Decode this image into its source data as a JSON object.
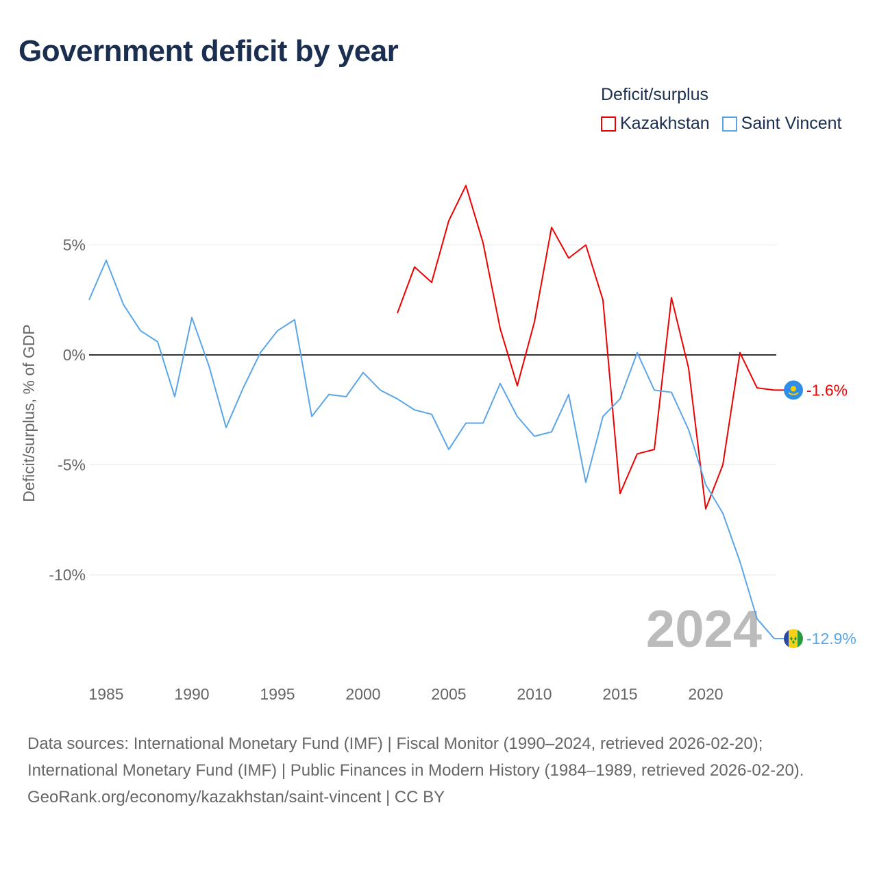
{
  "title": "Government deficit by year",
  "legend": {
    "title": "Deficit/surplus",
    "items": [
      {
        "label": "Kazakhstan",
        "color": "#ee0000"
      },
      {
        "label": "Saint Vincent",
        "color": "#5aa5e8"
      }
    ]
  },
  "chart_data": {
    "type": "line",
    "title": "Government deficit by year",
    "xlabel": "",
    "ylabel": "Deficit/surplus, % of GDP",
    "xlim": [
      1984,
      2024
    ],
    "ylim": [
      -13.5,
      8
    ],
    "x_ticks": [
      1985,
      1990,
      1995,
      2000,
      2005,
      2010,
      2015,
      2020
    ],
    "y_ticks": [
      {
        "value": 5,
        "label": "5%"
      },
      {
        "value": 0,
        "label": "0%"
      },
      {
        "value": -5,
        "label": "-5%"
      },
      {
        "value": -10,
        "label": "-10%"
      }
    ],
    "year_watermark": "2024",
    "series": [
      {
        "name": "Kazakhstan",
        "color": "#ee0000",
        "end_label": "-1.6%",
        "x": [
          2002,
          2003,
          2004,
          2005,
          2006,
          2007,
          2008,
          2009,
          2010,
          2011,
          2012,
          2013,
          2014,
          2015,
          2016,
          2017,
          2018,
          2019,
          2020,
          2021,
          2022,
          2023,
          2024
        ],
        "values": [
          1.9,
          4.0,
          3.3,
          6.1,
          7.7,
          5.1,
          1.2,
          -1.4,
          1.5,
          5.8,
          4.4,
          5.0,
          2.5,
          -6.3,
          -4.5,
          -4.3,
          2.6,
          -0.6,
          -7.0,
          -5.0,
          0.1,
          -1.5,
          -1.6
        ]
      },
      {
        "name": "Saint Vincent",
        "color": "#5aa5e8",
        "end_label": "-12.9%",
        "x": [
          1984,
          1985,
          1986,
          1987,
          1988,
          1989,
          1990,
          1991,
          1992,
          1993,
          1994,
          1995,
          1996,
          1997,
          1998,
          1999,
          2000,
          2001,
          2002,
          2003,
          2004,
          2005,
          2006,
          2007,
          2008,
          2009,
          2010,
          2011,
          2012,
          2013,
          2014,
          2015,
          2016,
          2017,
          2018,
          2019,
          2020,
          2021,
          2022,
          2023,
          2024
        ],
        "values": [
          2.5,
          4.3,
          2.3,
          1.1,
          0.6,
          -1.9,
          1.7,
          -0.5,
          -3.3,
          -1.5,
          0.1,
          1.1,
          1.6,
          -2.8,
          -1.8,
          -1.9,
          -0.8,
          -1.6,
          -2.0,
          -2.5,
          -2.7,
          -4.3,
          -3.1,
          -3.1,
          -1.3,
          -2.8,
          -3.7,
          -3.5,
          -1.8,
          -5.8,
          -2.8,
          -2.0,
          0.1,
          -1.6,
          -1.7,
          -3.4,
          -5.9,
          -7.2,
          -9.4,
          -12.0,
          -12.9
        ]
      }
    ]
  },
  "footer": {
    "sources": "Data sources: International Monetary Fund (IMF) | Fiscal Monitor (1990–2024, retrieved 2026-02-20); International Monetary Fund (IMF) | Public Finances in Modern History (1984–1989, retrieved 2026-02-20).",
    "credit": "GeoRank.org/economy/kazakhstan/saint-vincent | CC BY"
  }
}
